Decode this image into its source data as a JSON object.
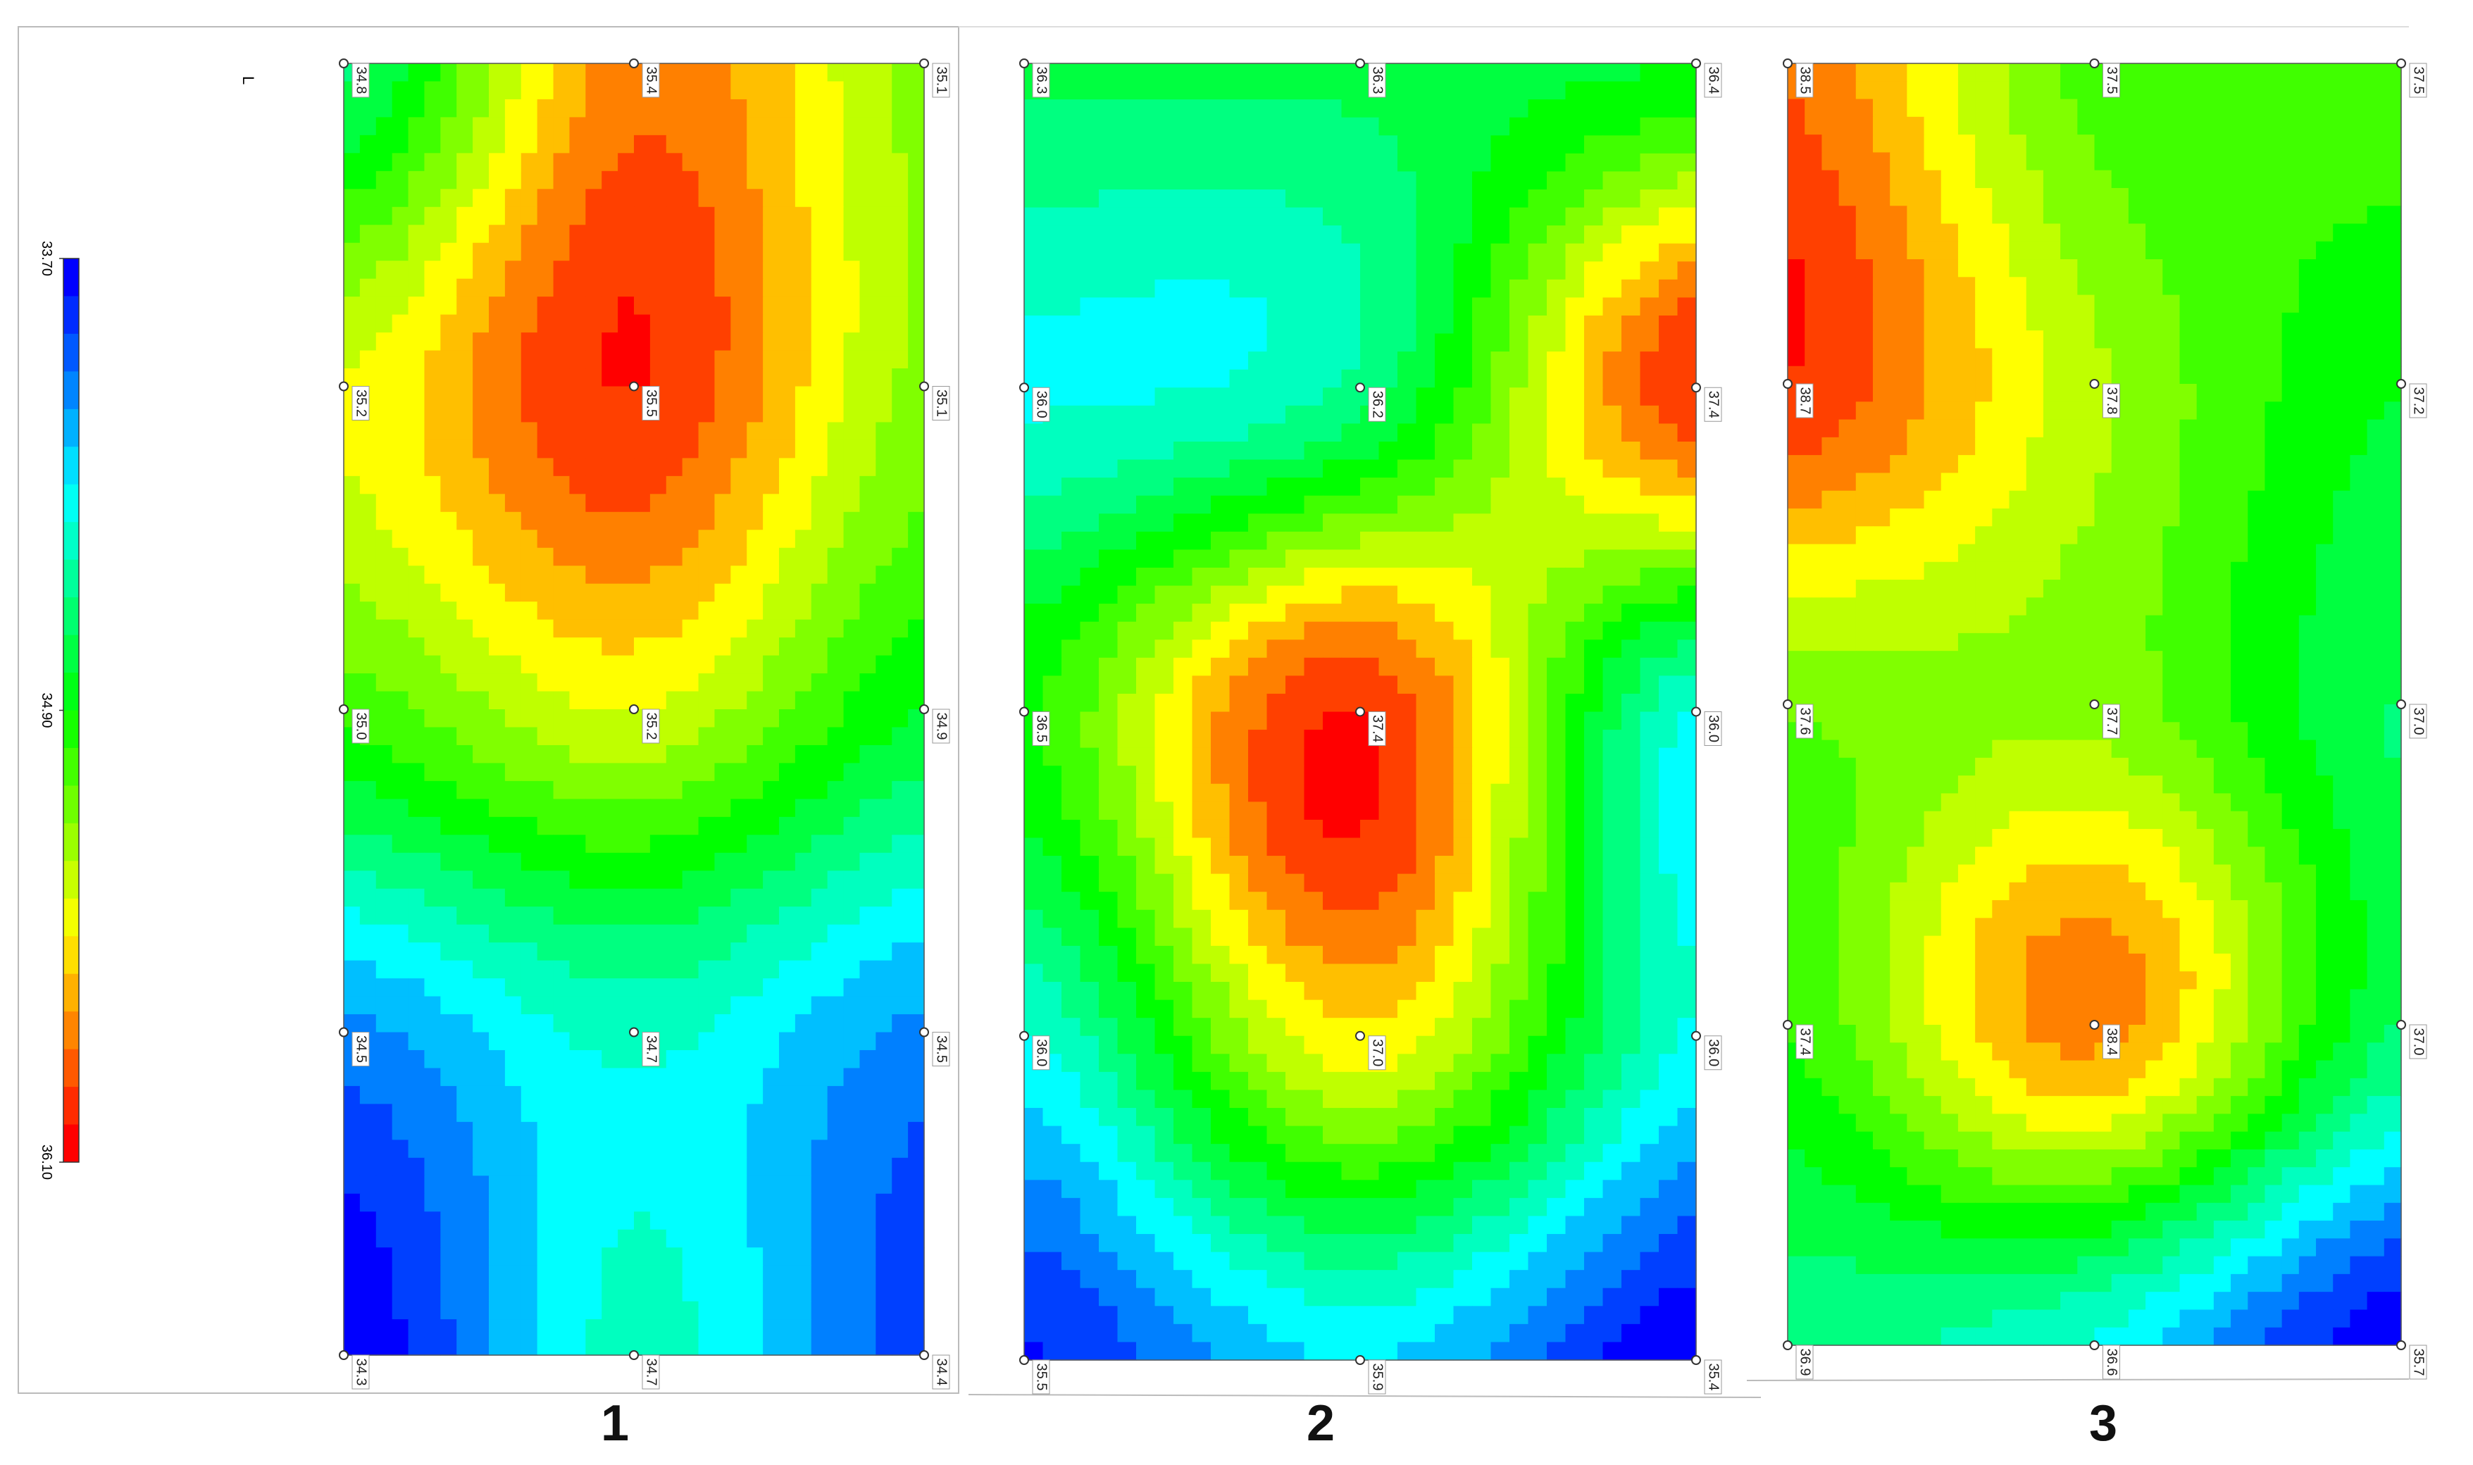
{
  "colorbar": {
    "ticks": [
      {
        "value": 33.7,
        "label": "33.70"
      },
      {
        "value": 34.9,
        "label": "34.90"
      },
      {
        "value": 36.1,
        "label": "36.10"
      }
    ],
    "corner_label": "L"
  },
  "panels": [
    {
      "label": "1",
      "values": [
        [
          34.8,
          35.4,
          35.1
        ],
        [
          35.2,
          35.5,
          35.1
        ],
        [
          35.0,
          35.2,
          34.9
        ],
        [
          34.5,
          34.7,
          34.5
        ],
        [
          34.3,
          34.7,
          34.4
        ]
      ],
      "value_labels": [
        [
          "34.8",
          "35.4",
          "35.1"
        ],
        [
          "35.2",
          "35.5",
          "35.1"
        ],
        [
          "35.0",
          "35.2",
          "34.9"
        ],
        [
          "34.5",
          "34.7",
          "34.5"
        ],
        [
          "34.3",
          "34.7",
          "34.4"
        ]
      ]
    },
    {
      "label": "2",
      "values": [
        [
          36.3,
          36.3,
          36.4
        ],
        [
          36.0,
          36.2,
          37.4
        ],
        [
          36.5,
          37.4,
          36.0
        ],
        [
          36.0,
          37.0,
          36.0
        ],
        [
          35.5,
          35.9,
          35.4
        ]
      ],
      "value_labels": [
        [
          "36.3",
          "36.3",
          "36.4"
        ],
        [
          "36.0",
          "36.2",
          "37.4"
        ],
        [
          "36.5",
          "37.4",
          "36.0"
        ],
        [
          "36.0",
          "37.0",
          "36.0"
        ],
        [
          "35.5",
          "35.9",
          "35.4"
        ]
      ]
    },
    {
      "label": "3",
      "values": [
        [
          38.5,
          37.5,
          37.5
        ],
        [
          38.7,
          37.8,
          37.2
        ],
        [
          37.6,
          37.7,
          37.0
        ],
        [
          37.4,
          38.4,
          37.0
        ],
        [
          36.9,
          36.6,
          35.7
        ]
      ],
      "value_labels": [
        [
          "38.5",
          "37.5",
          "37.5"
        ],
        [
          "38.7",
          "37.8",
          "37.2"
        ],
        [
          "37.6",
          "37.7",
          "37.0"
        ],
        [
          "37.4",
          "38.4",
          "37.0"
        ],
        [
          "36.9",
          "36.6",
          "35.7"
        ]
      ]
    }
  ]
}
